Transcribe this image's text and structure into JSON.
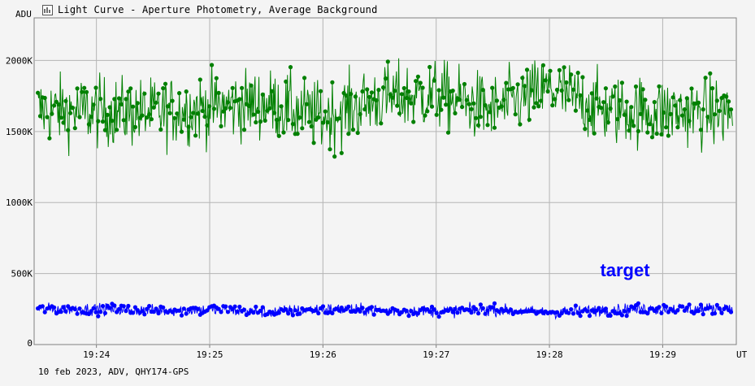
{
  "window": {
    "title": "Light Curve - Aperture Photometry, Average Background",
    "title_icon": "chart-icon"
  },
  "footer": "10 feb 2023, ADV, QHY174-GPS",
  "chart_data": {
    "type": "line",
    "title": "Light Curve - Aperture Photometry, Average Background",
    "ylabel": "ADU",
    "xlabel": "UT",
    "ylim": [
      0,
      2300000
    ],
    "xlim": [
      "19:23:27",
      "19:29:39"
    ],
    "y_ticks": [
      {
        "value": 500000,
        "label": "500K"
      },
      {
        "value": 1000000,
        "label": "1000K"
      },
      {
        "value": 1500000,
        "label": "1500K"
      },
      {
        "value": 2000000,
        "label": "2000K"
      }
    ],
    "x_ticks": [
      {
        "value": "19:24",
        "label": "19:24"
      },
      {
        "value": "19:25",
        "label": "19:25"
      },
      {
        "value": "19:26",
        "label": "19:26"
      },
      {
        "value": "19:27",
        "label": "19:27"
      },
      {
        "value": "19:28",
        "label": "19:28"
      },
      {
        "value": "19:29",
        "label": "19:29"
      }
    ],
    "grid": true,
    "x": [
      "19:23:30",
      "19:24:00",
      "19:24:30",
      "19:25:00",
      "19:25:30",
      "19:26:00",
      "19:26:30",
      "19:27:00",
      "19:27:30",
      "19:28:00",
      "19:28:30",
      "19:29:00",
      "19:29:30"
    ],
    "series": [
      {
        "color": "#008000",
        "values": [
          1650000,
          1640000,
          1630000,
          1670000,
          1700000,
          1600000,
          1730000,
          1760000,
          1650000,
          1800000,
          1650000,
          1640000,
          1630000
        ]
      },
      {
        "name": "target",
        "color": "#0000ff",
        "values": [
          250000,
          250000,
          240000,
          245000,
          230000,
          250000,
          240000,
          235000,
          245000,
          225000,
          245000,
          250000,
          255000
        ]
      }
    ]
  }
}
